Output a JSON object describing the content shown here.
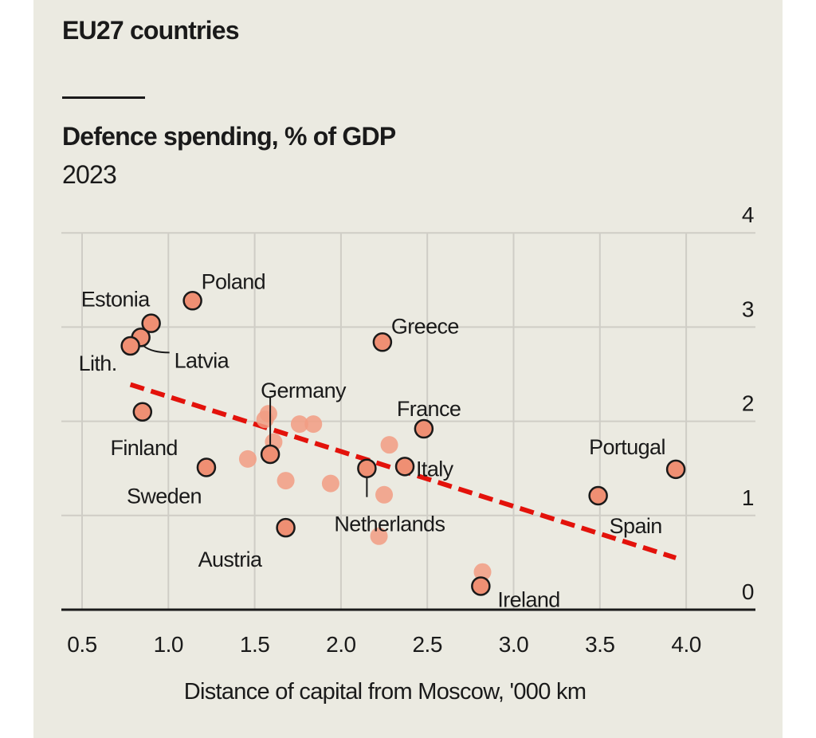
{
  "chart_data": {
    "type": "scatter",
    "title": "EU27 countries",
    "subtitle": "Defence spending, % of GDP",
    "subtitle2": "2023",
    "xlabel": "Distance of capital from Moscow, '000 km",
    "ylabel": "",
    "xlim": [
      0.5,
      4.0
    ],
    "ylim": [
      0,
      4
    ],
    "xticks": [
      "0.5",
      "1.0",
      "1.5",
      "2.0",
      "2.5",
      "3.0",
      "3.5",
      "4.0"
    ],
    "yticks": [
      "0",
      "1",
      "2",
      "3",
      "4"
    ],
    "grid": true,
    "colors": {
      "background": "#ebeae1",
      "point": "#ef8f73",
      "point_outline": "#1a1a1a",
      "point_unlabeled": "#f29c82",
      "trend": "#e3120b",
      "grid": "#cfcdc6"
    },
    "labeled_points": [
      {
        "label": "Poland",
        "x": 1.14,
        "y": 3.28
      },
      {
        "label": "Estonia",
        "x": 0.9,
        "y": 3.04
      },
      {
        "label": "Latvia",
        "x": 0.84,
        "y": 2.89
      },
      {
        "label": "Lith.",
        "x": 0.78,
        "y": 2.8
      },
      {
        "label": "Finland",
        "x": 0.85,
        "y": 2.1
      },
      {
        "label": "Sweden",
        "x": 1.22,
        "y": 1.51
      },
      {
        "label": "Germany",
        "x": 1.59,
        "y": 1.65
      },
      {
        "label": "Austria",
        "x": 1.68,
        "y": 0.87
      },
      {
        "label": "Greece",
        "x": 2.24,
        "y": 2.84
      },
      {
        "label": "France",
        "x": 2.48,
        "y": 1.92
      },
      {
        "label": "Italy",
        "x": 2.37,
        "y": 1.52
      },
      {
        "label": "Netherlands",
        "x": 2.15,
        "y": 1.5
      },
      {
        "label": "Ireland",
        "x": 2.81,
        "y": 0.25
      },
      {
        "label": "Spain",
        "x": 3.49,
        "y": 1.21
      },
      {
        "label": "Portugal",
        "x": 3.94,
        "y": 1.49
      }
    ],
    "unlabeled_points": [
      {
        "x": 1.56,
        "y": 2.02
      },
      {
        "x": 1.58,
        "y": 2.08
      },
      {
        "x": 1.76,
        "y": 1.97
      },
      {
        "x": 1.84,
        "y": 1.97
      },
      {
        "x": 1.61,
        "y": 1.78
      },
      {
        "x": 1.46,
        "y": 1.6
      },
      {
        "x": 1.68,
        "y": 1.37
      },
      {
        "x": 1.94,
        "y": 1.34
      },
      {
        "x": 2.28,
        "y": 1.75
      },
      {
        "x": 2.25,
        "y": 1.22
      },
      {
        "x": 2.22,
        "y": 0.78
      },
      {
        "x": 2.82,
        "y": 0.4
      }
    ],
    "trend_line": {
      "x": [
        0.78,
        3.94
      ],
      "y": [
        2.39,
        0.55
      ],
      "style": "dashed"
    }
  }
}
